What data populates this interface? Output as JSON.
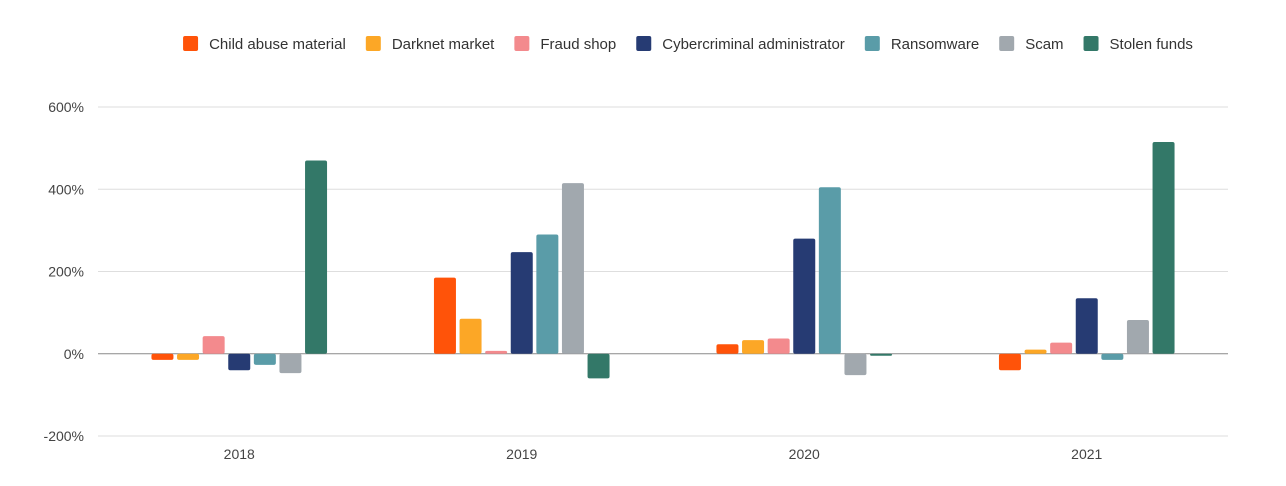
{
  "chart_data": {
    "type": "bar",
    "title": "",
    "xlabel": "",
    "ylabel": "",
    "ylim": [
      -200,
      600
    ],
    "yticks": [
      -200,
      0,
      200,
      400,
      600
    ],
    "ytick_labels": [
      "-200%",
      "0%",
      "200%",
      "400%",
      "600%"
    ],
    "categories": [
      "2018",
      "2019",
      "2020",
      "2021"
    ],
    "legend_position": "top",
    "grid": true,
    "series": [
      {
        "name": "Child abuse material",
        "color": "#FF5309",
        "values": [
          -15,
          185,
          23,
          -40
        ]
      },
      {
        "name": "Darknet market",
        "color": "#FCA726",
        "values": [
          -15,
          85,
          33,
          10
        ]
      },
      {
        "name": "Fraud shop",
        "color": "#F38A8D",
        "values": [
          43,
          7,
          37,
          27
        ]
      },
      {
        "name": "Cybercriminal administrator",
        "color": "#263B73",
        "values": [
          -40,
          247,
          280,
          135
        ]
      },
      {
        "name": "Ransomware",
        "color": "#5A9CA8",
        "values": [
          -27,
          290,
          405,
          -15
        ]
      },
      {
        "name": "Scam",
        "color": "#A1A8AE",
        "values": [
          -47,
          415,
          -52,
          82
        ]
      },
      {
        "name": "Stolen funds",
        "color": "#337868",
        "values": [
          470,
          -60,
          -5,
          515
        ]
      }
    ]
  }
}
